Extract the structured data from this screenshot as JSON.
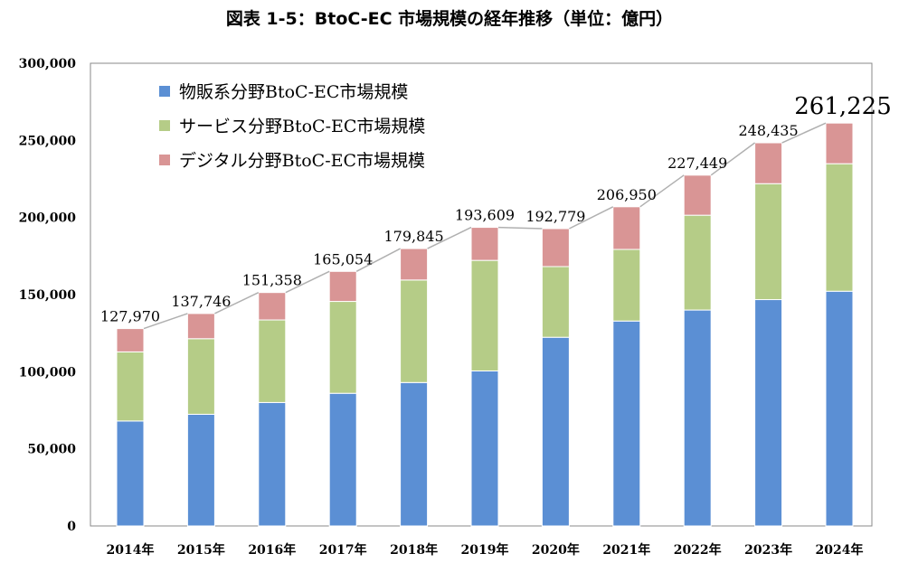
{
  "chart_data": {
    "type": "bar",
    "stacked": true,
    "title": "図表 1-5：BtoC-EC 市場規模の経年推移（単位：億円）",
    "categories": [
      "2014年",
      "2015年",
      "2016年",
      "2017年",
      "2018年",
      "2019年",
      "2020年",
      "2021年",
      "2022年",
      "2023年",
      "2024年"
    ],
    "series": [
      {
        "name": "物販系分野BtoC-EC市場規模",
        "color": "#5b8fd4",
        "values": [
          68043,
          72398,
          80043,
          86008,
          92992,
          100515,
          122333,
          132865,
          139997,
          146760,
          152194
        ]
      },
      {
        "name": "サービス分野BtoC-EC市場規模",
        "color": "#b5cc87",
        "values": [
          44816,
          49014,
          53532,
          59568,
          66471,
          71672,
          45832,
          46424,
          61477,
          75169,
          82675
        ]
      },
      {
        "name": "デジタル分野BtoC-EC市場規模",
        "color": "#d99595",
        "values": [
          15111,
          16334,
          17782,
          19478,
          20382,
          21422,
          24614,
          27661,
          25975,
          26506,
          26356
        ]
      }
    ],
    "totals": [
      127970,
      137746,
      151358,
      165054,
      179845,
      193609,
      192779,
      206950,
      227449,
      248435,
      261225
    ],
    "total_labels": [
      "127,970",
      "137,746",
      "151,358",
      "165,054",
      "179,845",
      "193,609",
      "192,779",
      "206,950",
      "227,449",
      "248,435",
      "261,225"
    ],
    "ylim": [
      0,
      300000
    ],
    "yticks": [
      0,
      50000,
      100000,
      150000,
      200000,
      250000,
      300000
    ],
    "ytick_labels": [
      "0",
      "50,000",
      "100,000",
      "150,000",
      "200,000",
      "250,000",
      "300,000"
    ],
    "grid": false,
    "legend": "top-left",
    "xlabel": "",
    "ylabel": ""
  }
}
